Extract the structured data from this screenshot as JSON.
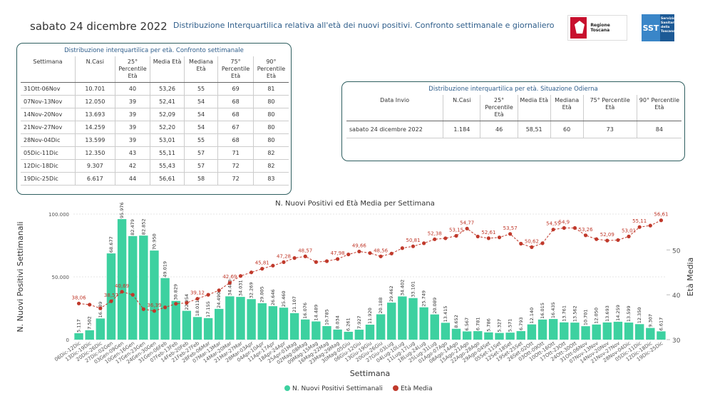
{
  "header": {
    "date": "sabato 24 dicembre 2022",
    "title": "Distribuzione Interquartilica relativa all'età dei nuovi positivi. Confronto settimanale e giornaliero",
    "logo_regione": "Regione Toscana",
    "logo_sst": "SST",
    "logo_sst_text": "Servizio Sanitario della Toscana"
  },
  "weekly_table": {
    "title": "Distribuzione interquartilica per età. Confronto settimanale",
    "headers": [
      "Settimana",
      "N.Casi",
      "25° Percentile Età",
      "Media Età",
      "Mediana Età",
      "75° Percentile Età",
      "90° Percentile Età"
    ],
    "rows": [
      [
        "31Ott-06Nov",
        "10.701",
        "40",
        "53,26",
        "55",
        "69",
        "81"
      ],
      [
        "07Nov-13Nov",
        "12.050",
        "39",
        "52,41",
        "54",
        "68",
        "80"
      ],
      [
        "14Nov-20Nov",
        "13.693",
        "39",
        "52,09",
        "54",
        "68",
        "80"
      ],
      [
        "21Nov-27Nov",
        "14.259",
        "39",
        "52,20",
        "54",
        "67",
        "80"
      ],
      [
        "28Nov-04Dic",
        "13.599",
        "39",
        "53,01",
        "55",
        "68",
        "80"
      ],
      [
        "05Dic-11Dic",
        "12.350",
        "43",
        "55,11",
        "57",
        "71",
        "82"
      ],
      [
        "12Dic-18Dic",
        "9.307",
        "42",
        "55,43",
        "57",
        "72",
        "82"
      ],
      [
        "19Dic-25Dic",
        "6.617",
        "44",
        "56,61",
        "58",
        "72",
        "83"
      ]
    ]
  },
  "today_table": {
    "title": "Distribuzione interquartilica per età. Situazione Odierna",
    "headers": [
      "Data Invio",
      "N.Casi",
      "25° Percentile Età",
      "Media Età",
      "Mediana Età",
      "75° Percentile Età",
      "90° Percentile Età"
    ],
    "rows": [
      [
        "sabato 24 dicembre 2022",
        "1.184",
        "46",
        "58,51",
        "60",
        "73",
        "84"
      ]
    ]
  },
  "chart_data": {
    "type": "bar+line",
    "title": "N. Nuovi Positivi ed Età Media per Settimana",
    "xlabel": "Settimana",
    "ylabel_left": "N. Nuovi Positivi Settimanali",
    "ylabel_right": "Età Media",
    "ylim_left": [
      0,
      100000
    ],
    "ylim_right": [
      30,
      58
    ],
    "yticks_left": [
      "0",
      "50.000",
      "100.000"
    ],
    "yticks_right": [
      "30",
      "40",
      "50"
    ],
    "categories": [
      "06Dic-12Dic",
      "13Dic-19Dic",
      "20Dic-26Dic",
      "27Dic-02Gen",
      "03Gen-09Gen",
      "10Gen-16Gen",
      "17Gen-23Gen",
      "24Gen-30Gen",
      "31Gen-06Feb",
      "07Feb-13Feb",
      "14Feb-20Feb",
      "21Feb-27Feb",
      "28Feb-06Mar",
      "07Mar-13Mar",
      "14Mar-20Mar",
      "21Mar-27Mar",
      "28Mar-03Apr",
      "04Apr-10Apr",
      "11Apr-17Apr",
      "18Apr-24Apr",
      "25Apr-01Mag",
      "02Mag-08Mag",
      "09Mag-15Mag",
      "16Mag-22Mag",
      "23Mag-29Mag",
      "30Mag-05Giu",
      "06Giu-12Giu",
      "13Giu-19Giu",
      "20Giu-26Giu",
      "27Giu-03Lug",
      "04Lug-10Lug",
      "11Lug-17Lug",
      "18Lug-24Lug",
      "25Lug-31Lug",
      "01Ago-07Ago",
      "08Ago-14Ago",
      "15Ago-21Ago",
      "22Ago-28Ago",
      "29Ago-04Set",
      "05Set-11Set",
      "12Set-18Set",
      "19Set-25Set",
      "26Set-02Ott",
      "03Ott-09Ott",
      "10Ott-16Ott",
      "17Ott-23Ott",
      "24Ott-30Ott",
      "31Ott-06Nov",
      "07Nov-13Nov",
      "14Nov-20Nov",
      "21Nov-27Nov",
      "28Nov-04Dic",
      "05Dic-11Dic",
      "12Dic-18Dic",
      "19Dic-25Dic"
    ],
    "series": [
      {
        "name": "N. Nuovi Positivi Settimanali",
        "color": "#3dd1a0",
        "values": [
          5117,
          7502,
          16839,
          68677,
          95976,
          82479,
          82852,
          70950,
          49019,
          30829,
          22954,
          18011,
          17155,
          24490,
          34480,
          34031,
          32269,
          29005,
          26646,
          25460,
          21107,
          16076,
          14489,
          10785,
          8034,
          6261,
          7927,
          11920,
          20188,
          29462,
          34402,
          33101,
          25749,
          20089,
          13415,
          8652,
          6567,
          6781,
          5786,
          5327,
          5571,
          6793,
          12140,
          16015,
          16435,
          13761,
          13562,
          10701,
          12050,
          13693,
          14259,
          13599,
          12350,
          9307,
          6617
        ],
        "labels": [
          "5.117",
          "7.502",
          "16.839",
          "68.677",
          "95.976",
          "82.479",
          "82.852",
          "70.950",
          "49.019",
          "30.829",
          "22.954",
          "18.011",
          "17.155",
          "24.490",
          "34.480",
          "34.031",
          "32.269",
          "29.005",
          "26.646",
          "25.460",
          "21.107",
          "16.076",
          "14.489",
          "10.785",
          "8.034",
          "6.261",
          "7.927",
          "11.920",
          "20.188",
          "29.462",
          "34.402",
          "33.101",
          "25.749",
          "20.089",
          "13.415",
          "8.652",
          "6.567",
          "6.781",
          "5.786",
          "5.327",
          "5.571",
          "6.793",
          "12.140",
          "16.015",
          "16.435",
          "13.761",
          "13.562",
          "10.701",
          "12.050",
          "13.693",
          "14.259",
          "13.599",
          "12.350",
          "9.307",
          "6.617"
        ]
      },
      {
        "name": "Età Media",
        "color": "#c0392b",
        "values": [
          38.06,
          37.8,
          37.0,
          38.57,
          40.69,
          40.0,
          36.8,
          36.39,
          37.2,
          38.0,
          38.2,
          39.12,
          40.0,
          41.0,
          42.69,
          44.2,
          45.0,
          45.81,
          46.5,
          47.28,
          48.2,
          48.57,
          47.3,
          47.5,
          47.98,
          49.0,
          49.66,
          49.3,
          48.56,
          49.2,
          50.4,
          50.81,
          51.5,
          52.38,
          52.6,
          53.15,
          54.77,
          53.0,
          52.61,
          52.8,
          53.57,
          51.4,
          50.62,
          51.5,
          54.55,
          54.9,
          54.9,
          53.26,
          52.41,
          52.09,
          52.2,
          53.01,
          55.11,
          55.43,
          56.61
        ],
        "labels": [
          "38,06",
          "",
          "",
          "38,57",
          "40,69",
          "",
          "",
          "36,39",
          "",
          "",
          "",
          "39,12",
          "",
          "",
          "42,69",
          "",
          "",
          "45,81",
          "",
          "47,28",
          "",
          "48,57",
          "",
          "",
          "47,98",
          "",
          "49,66",
          "",
          "48,56",
          "",
          "",
          "50,81",
          "",
          "52,38",
          "",
          "53,15",
          "54,77",
          "",
          "52,61",
          "",
          "53,57",
          "",
          "50,62",
          "",
          "54,55",
          "54,9",
          "",
          "53,26",
          "",
          "52,09",
          "",
          "53,01",
          "55,11",
          "",
          "56,61"
        ]
      }
    ],
    "legend_position": "bottom-center"
  }
}
